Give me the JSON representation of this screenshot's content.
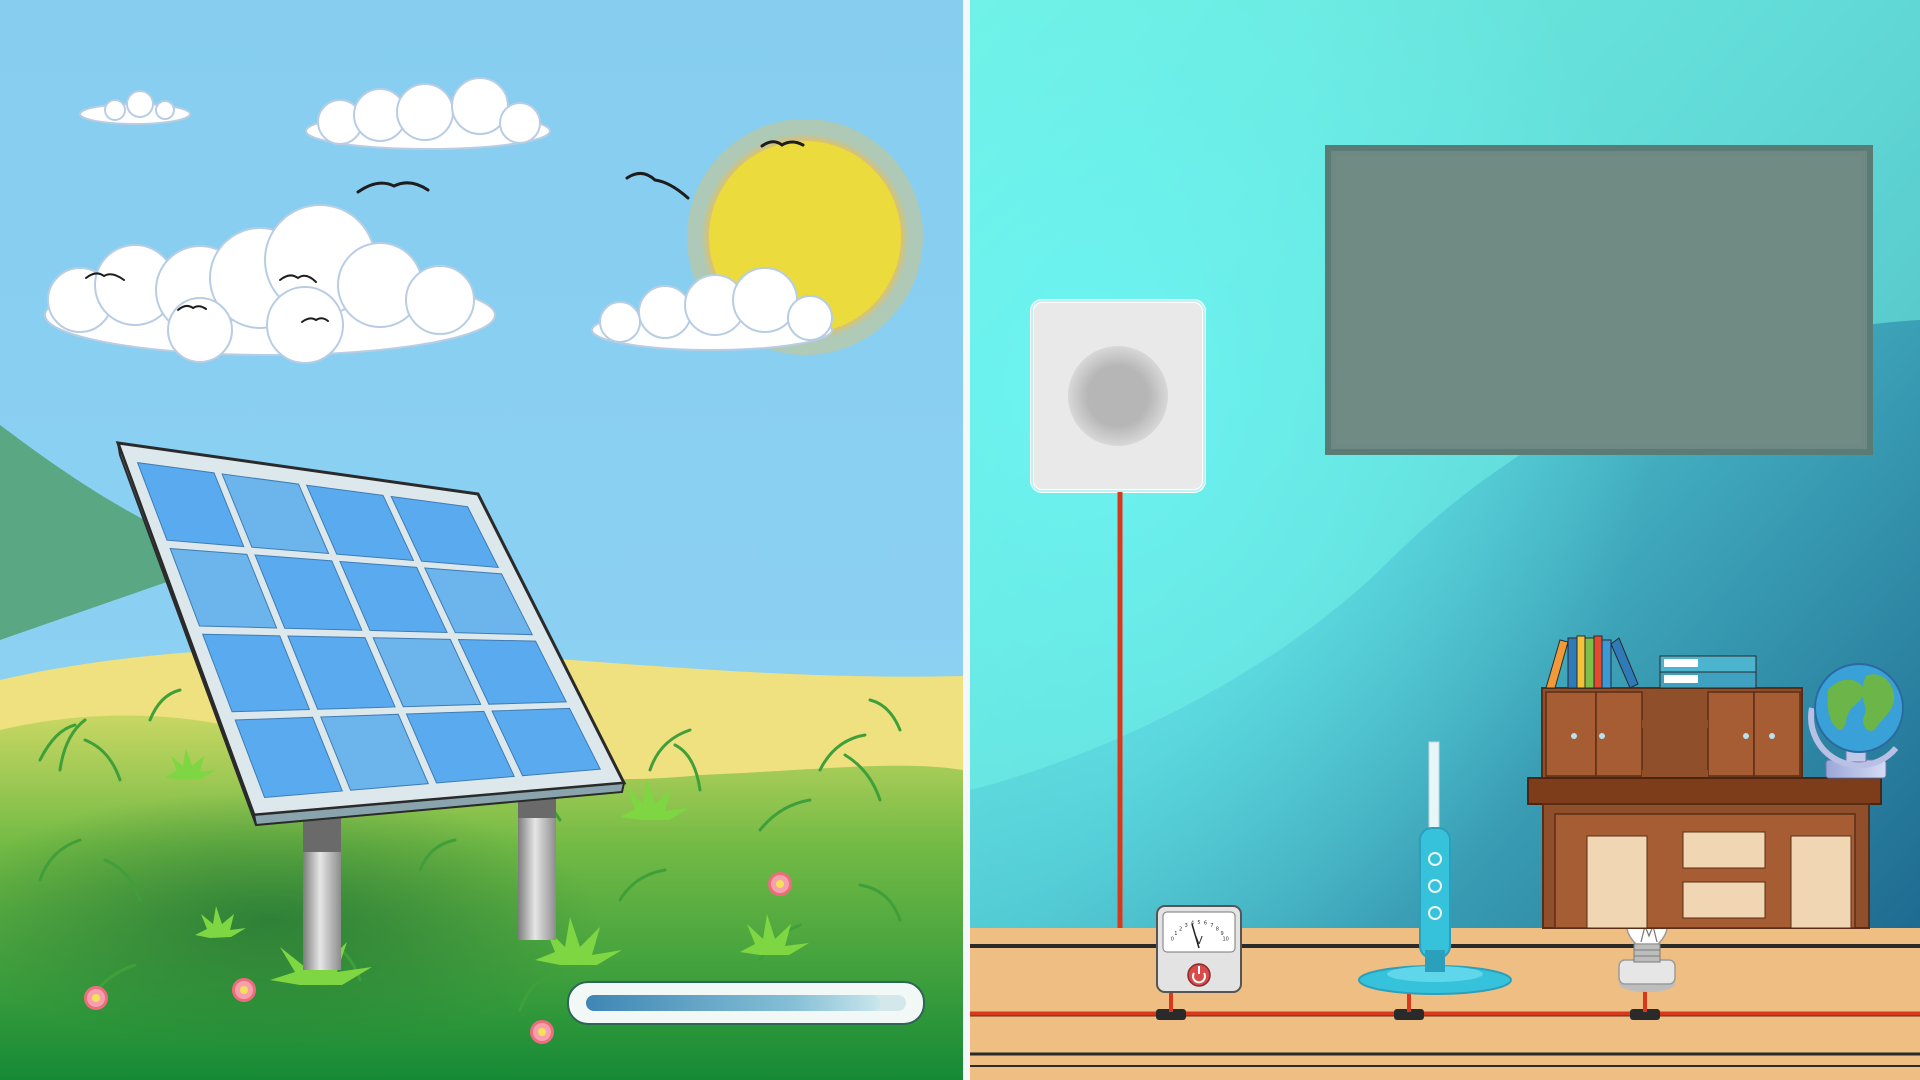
{
  "scene": {
    "left_panel": "outdoor-solar-field",
    "right_panel": "indoor-room-circuit"
  },
  "voltmeter": {
    "unit": "V",
    "scale_labels": [
      "0",
      "1",
      "2",
      "3",
      "4",
      "5",
      "6",
      "7",
      "8",
      "9",
      "10"
    ]
  },
  "energy_bar": {
    "level": 0.92
  },
  "colors": {
    "sky": "#86cdf0",
    "sun": "#f3dc3c",
    "panel_cell": "#5aaaf0",
    "wall": "#5fd6d2",
    "screen": "#6f8b84",
    "floor": "#eebe82",
    "wire": "#d9381c",
    "fan": "#37c2dc"
  }
}
